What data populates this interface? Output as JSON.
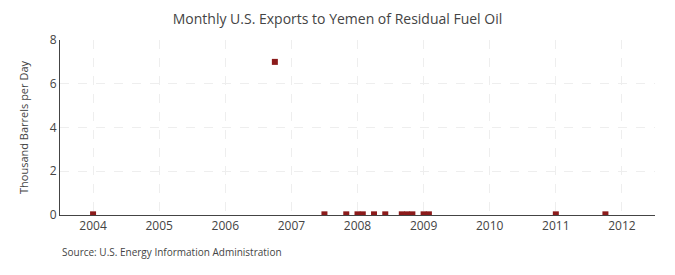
{
  "chart_data": {
    "type": "scatter",
    "title": "Monthly U.S. Exports to Yemen of Residual Fuel Oil",
    "ylabel": "Thousand Barrels per Day",
    "annotations": [
      "Source: U.S. Energy Information Administration"
    ],
    "x": [
      2004.0,
      2006.75,
      2007.5,
      2007.83,
      2008.0,
      2008.08,
      2008.25,
      2008.42,
      2008.67,
      2008.75,
      2008.83,
      2009.0,
      2009.08,
      2011.0,
      2011.75
    ],
    "values": [
      0.03,
      7.0,
      0.03,
      0.03,
      0.03,
      0.03,
      0.03,
      0.03,
      0.03,
      0.03,
      0.03,
      0.03,
      0.03,
      0.03,
      0.03
    ],
    "color": "#8b1a1a",
    "marker": "square",
    "xlim": [
      2003.5,
      2012.5
    ],
    "xticks": [
      2004,
      2005,
      2006,
      2007,
      2008,
      2009,
      2010,
      2011,
      2012
    ],
    "ylim": [
      0,
      8
    ],
    "yticks": [
      0,
      2,
      4,
      6,
      8
    ],
    "grid": true
  }
}
